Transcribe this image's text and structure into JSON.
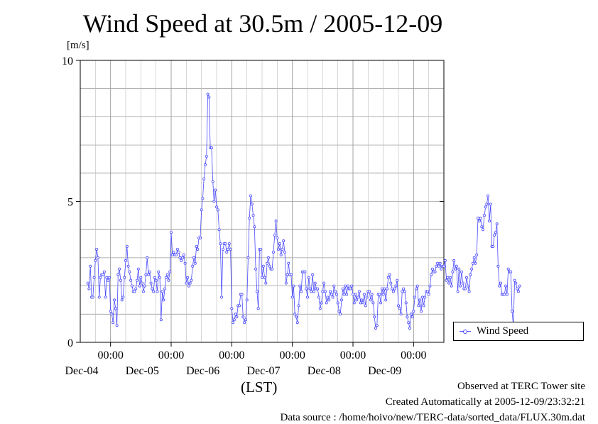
{
  "chart_data": {
    "type": "line",
    "title": "Wind Speed at 30.5m / 2005-12-09",
    "ylabel": "[m/s]",
    "xlabel": "(LST)",
    "ylim": [
      0,
      10
    ],
    "y_ticks": [
      "0",
      "5",
      "10"
    ],
    "x_ticks": [
      {
        "time": "00:00",
        "date": "Dec-04"
      },
      {
        "time": "00:00",
        "date": "Dec-05"
      },
      {
        "time": "00:00",
        "date": "Dec-06"
      },
      {
        "time": "00:00",
        "date": "Dec-07"
      },
      {
        "time": "00:00",
        "date": "Dec-08"
      },
      {
        "time": "00:00",
        "date": "Dec-09"
      }
    ],
    "grid": true,
    "legend_position": "right",
    "series": [
      {
        "name": "Wind Speed",
        "color": "#4a4aff",
        "x_unit": "hours from 2005-12-03 00:00",
        "x_start": 15,
        "x_step": 0.5,
        "values": [
          2.1,
          1.9,
          2.7,
          1.6,
          1.6,
          2.3,
          2.9,
          3.3,
          3.0,
          1.6,
          2.3,
          2.4,
          2.4,
          2.5,
          1.6,
          2.3,
          2.2,
          2.3,
          1.1,
          1.0,
          0.7,
          1.5,
          1.2,
          0.6,
          2.4,
          2.6,
          2.2,
          1.5,
          1.6,
          2.3,
          2.9,
          3.4,
          2.7,
          2.5,
          2.2,
          2.0,
          1.8,
          1.8,
          1.9,
          2.2,
          2.6,
          2.0,
          2.3,
          2.1,
          1.8,
          2.0,
          2.4,
          3.0,
          2.4,
          2.5,
          2.1,
          1.9,
          1.8,
          2.3,
          2.2,
          1.8,
          2.5,
          2.3,
          0.8,
          1.8,
          1.5,
          1.9,
          2.3,
          2.4,
          2.2,
          2.5,
          3.9,
          3.1,
          3.2,
          3.1,
          3.1,
          3.3,
          3.2,
          3.0,
          2.9,
          3.0,
          3.1,
          2.8,
          2.1,
          2.3,
          2.0,
          2.1,
          2.2,
          2.7,
          3.0,
          2.8,
          3.4,
          3.3,
          3.7,
          3.7,
          4.7,
          5.1,
          5.8,
          6.3,
          6.6,
          8.8,
          8.7,
          6.9,
          6.9,
          5.7,
          5.0,
          5.4,
          4.8,
          4.7,
          4.0,
          3.5,
          1.6,
          3.3,
          3.5,
          3.5,
          3.2,
          3.3,
          3.5,
          3.3,
          1.2,
          0.7,
          0.8,
          1.0,
          0.9,
          1.3,
          1.3,
          1.7,
          1.7,
          0.9,
          0.7,
          0.8,
          1.5,
          3.0,
          4.4,
          5.2,
          4.9,
          4.5,
          4.1,
          2.6,
          1.8,
          1.2,
          3.3,
          3.3,
          2.3,
          2.7,
          2.3,
          2.1,
          2.8,
          3.0,
          2.7,
          2.6,
          2.6,
          3.2,
          3.8,
          4.3,
          3.7,
          3.3,
          3.5,
          3.1,
          3.3,
          3.6,
          3.2,
          2.1,
          2.4,
          2.8,
          2.4,
          2.4,
          1.6,
          2.0,
          1.0,
          0.9,
          0.7,
          1.3,
          2.0,
          1.8,
          2.5,
          2.5,
          2.5,
          1.9,
          1.6,
          2.3,
          1.9,
          1.8,
          2.4,
          1.8,
          2.1,
          1.9,
          1.9,
          1.6,
          1.2,
          1.4,
          1.8,
          2.1,
          1.8,
          1.4,
          1.6,
          1.5,
          1.8,
          1.7,
          1.6,
          2.0,
          1.8,
          1.7,
          1.4,
          1.1,
          1.0,
          1.5,
          1.9,
          1.7,
          2.0,
          1.7,
          2.0,
          1.9,
          1.9,
          2.0,
          1.7,
          1.4,
          1.7,
          1.5,
          1.6,
          1.8,
          1.4,
          1.5,
          1.4,
          1.7,
          1.3,
          1.6,
          1.8,
          1.8,
          1.5,
          1.7,
          1.4,
          0.9,
          0.5,
          0.6,
          1.7,
          1.7,
          1.4,
          1.9,
          1.7,
          1.9,
          1.5,
          1.9,
          2.3,
          2.4,
          2.1,
          1.9,
          1.8,
          1.9,
          2.0,
          2.2,
          1.3,
          1.2,
          1.0,
          1.8,
          1.9,
          1.8,
          1.4,
          0.9,
          0.7,
          0.5,
          1.0,
          0.9,
          1.1,
          1.6,
          1.9,
          2.0,
          1.3,
          1.5,
          1.1,
          1.6,
          1.3,
          1.6,
          1.8,
          1.8,
          1.7,
          2.0,
          2.4,
          2.6,
          2.5,
          2.5,
          2.7,
          2.8,
          2.7,
          2.8,
          2.6,
          2.7,
          2.7,
          2.9,
          2.2,
          2.3,
          2.1,
          2.3,
          2.0,
          2.5,
          2.9,
          2.6,
          2.7,
          1.8,
          2.6,
          2.0,
          2.5,
          2.1,
          1.9,
          1.9,
          2.3,
          2.0,
          1.8,
          2.4,
          2.6,
          2.8,
          3.0,
          2.8,
          3.1,
          4.4,
          4.3,
          4.4,
          4.1,
          4.0,
          4.5,
          4.8,
          4.9,
          5.2,
          4.3,
          4.9,
          3.4,
          3.4,
          3.8,
          3.9,
          4.2,
          2.7,
          2.0,
          2.1,
          1.7,
          1.7,
          1.7,
          2.0,
          1.7,
          2.6,
          2.5,
          2.5,
          1.1,
          0.6,
          2.2,
          2.1,
          1.9,
          1.8,
          2.0
        ]
      }
    ]
  },
  "legend": {
    "label": "Wind Speed"
  },
  "footer": {
    "line1": "Observed at TERC Tower site",
    "line2": "Created Automatically at 2005-12-09/23:32:21",
    "line3": "Data source : /home/hoivo/new/TERC-data/sorted_data/FLUX.30m.dat"
  }
}
